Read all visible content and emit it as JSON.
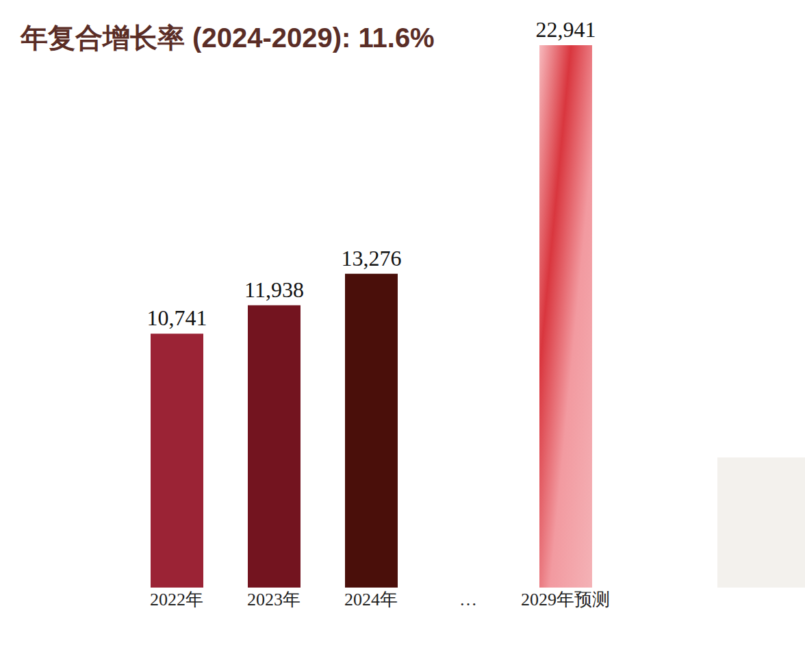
{
  "chart_data": {
    "type": "bar",
    "title": "年复合增长率 (2024-2029): 11.6%",
    "categories": [
      "2022年",
      "2023年",
      "2024年",
      "…",
      "2029年预测"
    ],
    "values": [
      10741,
      11938,
      13276,
      null,
      22941
    ],
    "value_labels": [
      "10,741",
      "11,938",
      "13,276",
      null,
      "22,941"
    ],
    "colors": [
      "#9b2335",
      "#73141f",
      "#4a0f0a",
      null,
      "#ec8a90"
    ],
    "ylim": [
      0,
      22941
    ],
    "data_labels": true,
    "tick_labels": "x",
    "grid": false
  }
}
